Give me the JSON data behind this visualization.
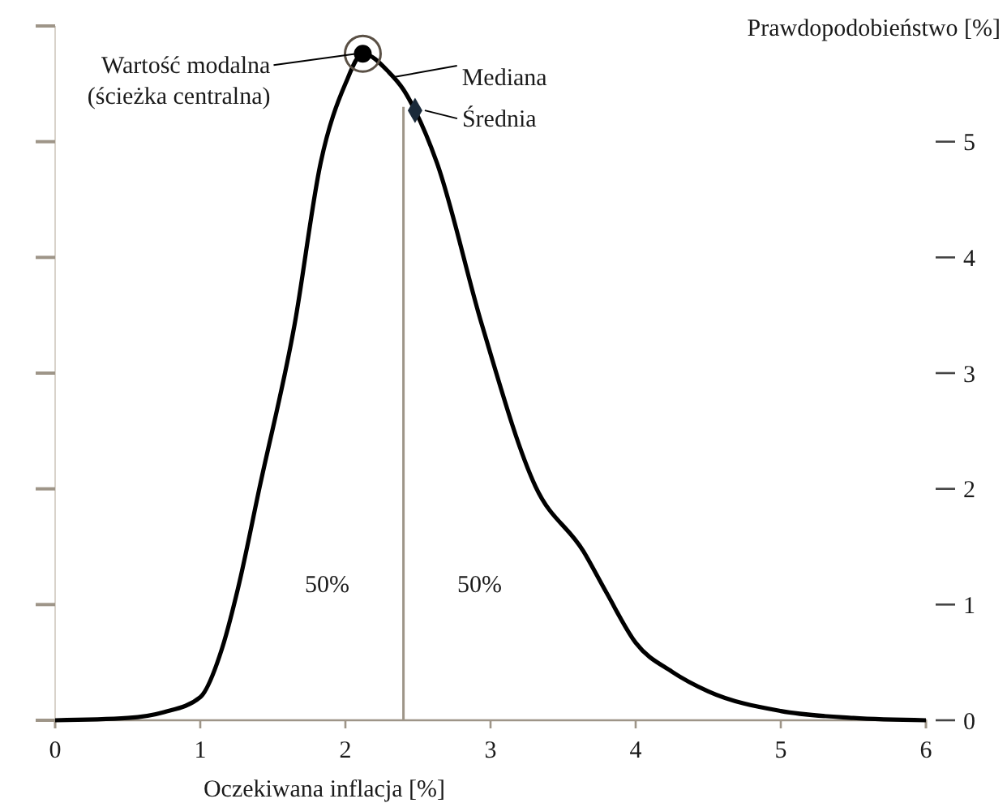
{
  "chart_data": {
    "type": "line",
    "xlabel": "Oczekiwana inflacja [%]",
    "ylabel": "Prawdopodobieństwo [%]",
    "xlim": [
      0,
      6
    ],
    "xticks": [
      0,
      1,
      2,
      3,
      4,
      5,
      6
    ],
    "ylim": [
      0,
      6
    ],
    "yticks": [
      0,
      1,
      2,
      3,
      4,
      5,
      {
        "value": 6,
        "label": null
      }
    ],
    "series": [
      {
        "color": "#000000",
        "x": [
          0,
          0.5,
          0.75,
          1,
          1.15,
          1.26,
          1.41,
          1.65,
          1.83,
          2.0,
          2.12,
          2.3,
          2.4,
          2.48,
          2.63,
          2.94,
          3.31,
          3.64,
          3.8,
          4,
          4.25,
          4.5,
          5,
          5.5,
          6
        ],
        "values": [
          0,
          0.02,
          0.07,
          0.2,
          0.62,
          1.14,
          2.02,
          3.42,
          4.82,
          5.5,
          5.76,
          5.6,
          5.45,
          5.27,
          4.82,
          3.42,
          2.02,
          1.46,
          1.1,
          0.67,
          0.42,
          0.25,
          0.08,
          0.02,
          0
        ]
      },
      {
        "type": "scatter",
        "marker": "circle",
        "color": "#000000",
        "x": [
          2.12
        ],
        "values": [
          5.76
        ]
      },
      {
        "type": "scatter",
        "marker": "diamond",
        "color": "#1a2a3a",
        "x": [
          2.48
        ],
        "values": [
          5.27
        ]
      }
    ],
    "ref_lines": [
      {
        "axis": "x",
        "value": 2.4,
        "color": "#9e9588"
      }
    ],
    "annotations": [
      {
        "text": "Wartość modalna\n(ścieżka centralna)",
        "x": 2.12,
        "y": 5.76
      },
      {
        "text": "Mediana",
        "x": 2.3,
        "y": 5.6
      },
      {
        "text": "Średnia",
        "x": 2.48,
        "y": 5.27
      },
      "50%",
      "50%"
    ]
  }
}
